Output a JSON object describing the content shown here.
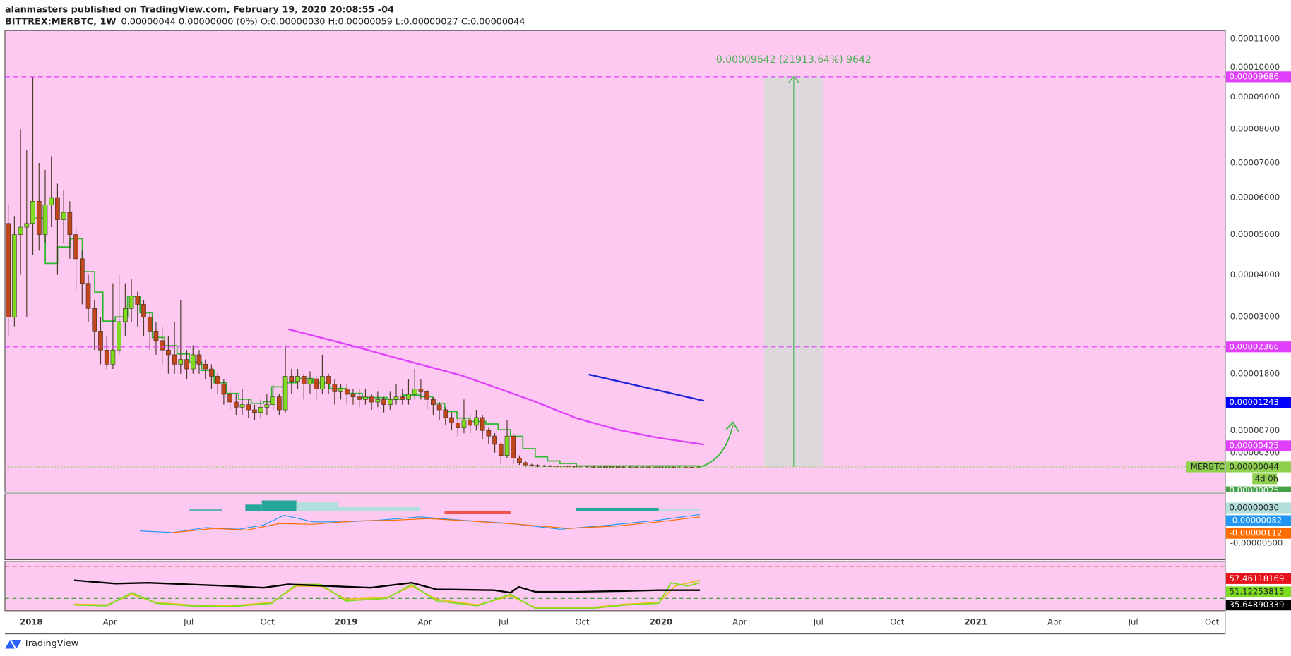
{
  "header": {
    "publisher": "alanmasters published on TradingView.com, February 19, 2020 20:08:55 -04",
    "symbol": "BITTREX:MERBTC, 1W",
    "quote": "0.00000044 0.00000000 (0%) O:0.00000030 H:0.00000059 L:0.00000027 C:0.00000044"
  },
  "chart_data": {
    "type": "candlestick",
    "up_color": "#7ddc22",
    "down_color": "#c0461c",
    "open": [
      5.3e-05,
      3e-05,
      5e-05,
      5.2e-05,
      5.3e-05,
      5.9e-05,
      5e-05,
      5.8e-05,
      6e-05,
      5.4e-05,
      5.6e-05,
      5e-05,
      4.4e-05,
      3.8e-05,
      3.2e-05,
      2.7e-05,
      2.3e-05,
      2e-05,
      2.3e-05,
      2.9e-05,
      3.2e-05,
      3.5e-05,
      3.3e-05,
      3e-05,
      2.7e-05,
      2.5e-05,
      2.3e-05,
      2.2e-05,
      2e-05,
      2.1e-05,
      1.9e-05,
      2.2e-05,
      2e-05,
      1.9e-05,
      1.75e-05,
      1.6e-05,
      1.4e-05,
      1.25e-05,
      1.15e-05,
      1.2e-05,
      1.1e-05,
      1.05e-05,
      1.15e-05,
      1.2e-05,
      1.35e-05,
      1.1e-05,
      1.75e-05,
      1.65e-05,
      1.75e-05,
      1.6e-05,
      1.7e-05,
      1.5e-05,
      1.75e-05,
      1.6e-05,
      1.45e-05,
      1.5e-05,
      1.4e-05,
      1.35e-05,
      1.3e-05,
      1.35e-05,
      1.25e-05,
      1.3e-05,
      1.2e-05,
      1.3e-05,
      1.35e-05,
      1.3e-05,
      1.4e-05,
      1.5e-05,
      1.45e-05,
      1.3e-05,
      1.2e-05,
      1.1e-05,
      9.5e-06,
      8.5e-06,
      7.5e-06,
      9e-06,
      8e-06,
      9.5e-06,
      7e-06,
      6e-06,
      4.5e-06,
      2.5e-06,
      6e-06,
      2e-06,
      1.2e-06,
      8e-07,
      7e-07,
      6e-07,
      6.5e-07,
      6e-07,
      5.5e-07,
      6e-07,
      5.5e-07,
      5e-07,
      5.5e-07,
      5e-07,
      4.8e-07,
      5e-07,
      4.5e-07,
      5e-07,
      4.8e-07,
      4.5e-07,
      4.7e-07,
      4.4e-07,
      4.6e-07,
      4.3e-07,
      4.5e-07,
      4.2e-07,
      4.4e-07,
      4.1e-07,
      4.3e-07,
      4e-07,
      3e-07
    ],
    "high": [
      5.8e-05,
      5.5e-05,
      8e-05,
      7.4e-05,
      9.69e-05,
      7e-05,
      6.8e-05,
      7.2e-05,
      6.4e-05,
      6.2e-05,
      5.9e-05,
      5.2e-05,
      4.6e-05,
      4e-05,
      3.4e-05,
      3e-05,
      2.6e-05,
      3.8e-05,
      4e-05,
      3.8e-05,
      3.9e-05,
      3.6e-05,
      3.4e-05,
      3.1e-05,
      2.9e-05,
      2.8e-05,
      2.6e-05,
      2.9e-05,
      3.4e-05,
      2.3e-05,
      2.4e-05,
      2.3e-05,
      2.1e-05,
      2e-05,
      1.8e-05,
      1.7e-05,
      1.5e-05,
      1.4e-05,
      1.5e-05,
      1.3e-05,
      1.2e-05,
      1.3e-05,
      1.4e-05,
      1.6e-05,
      1.4e-05,
      2.4e-05,
      1.9e-05,
      1.9e-05,
      1.8e-05,
      1.85e-05,
      1.75e-05,
      2.2e-05,
      1.8e-05,
      1.7e-05,
      1.6e-05,
      1.6e-05,
      1.5e-05,
      1.5e-05,
      1.5e-05,
      1.4e-05,
      1.45e-05,
      1.35e-05,
      1.45e-05,
      1.6e-05,
      1.5e-05,
      1.7e-05,
      1.9e-05,
      1.7e-05,
      1.5e-05,
      1.35e-05,
      1.25e-05,
      1.15e-05,
      1.05e-05,
      9.5e-06,
      1.3e-05,
      1e-05,
      1.1e-05,
      1e-05,
      7.5e-06,
      6.5e-06,
      5e-06,
      9e-06,
      6.5e-06,
      2.5e-06,
      1.5e-06,
      1e-06,
      9e-07,
      8e-07,
      7.5e-07,
      7e-07,
      7e-07,
      7e-07,
      6.5e-07,
      6.5e-07,
      6e-07,
      6e-07,
      6e-07,
      5.5e-07,
      6e-07,
      5.5e-07,
      5.5e-07,
      5.5e-07,
      5e-07,
      5.5e-07,
      5e-07,
      5e-07,
      5e-07,
      5e-07,
      5e-07,
      5e-07,
      5e-07,
      4.5e-07,
      5.9e-07
    ],
    "low": [
      2.6e-05,
      2.8e-05,
      4e-05,
      3e-05,
      4.5e-05,
      4.6e-05,
      4.8e-05,
      5.2e-05,
      4e-05,
      4.8e-05,
      4.4e-05,
      3.6e-05,
      3.3e-05,
      2.9e-05,
      2.3e-05,
      2e-05,
      1.9e-05,
      1.9e-05,
      2.2e-05,
      2.6e-05,
      2.9e-05,
      2.8e-05,
      2.6e-05,
      2.3e-05,
      2.2e-05,
      2e-05,
      1.8e-05,
      1.8e-05,
      1.8e-05,
      1.7e-05,
      1.8e-05,
      1.8e-05,
      1.7e-05,
      1.5e-05,
      1.4e-05,
      1.2e-05,
      1.1e-05,
      1e-05,
      1e-05,
      9.5e-06,
      9e-06,
      9.5e-06,
      1e-05,
      1.1e-05,
      1e-05,
      1.05e-05,
      1.4e-05,
      1.5e-05,
      1.3e-05,
      1.4e-05,
      1.3e-05,
      1.4e-05,
      1.4e-05,
      1.2e-05,
      1.3e-05,
      1.2e-05,
      1.2e-05,
      1.15e-05,
      1.2e-05,
      1.1e-05,
      1.15e-05,
      1.05e-05,
      1.1e-05,
      1.2e-05,
      1.2e-05,
      1.2e-05,
      1.3e-05,
      1.3e-05,
      1.1e-05,
      1e-05,
      9e-06,
      8e-06,
      7e-06,
      6e-06,
      6.5e-06,
      6.5e-06,
      7e-06,
      5.5e-06,
      4.5e-06,
      3e-06,
      1e-06,
      2e-06,
      1e-06,
      8e-07,
      5e-07,
      5e-07,
      4e-07,
      4.5e-07,
      4.5e-07,
      4e-07,
      4e-07,
      4e-07,
      4e-07,
      4e-07,
      4e-07,
      3.5e-07,
      4e-07,
      3.5e-07,
      4e-07,
      4e-07,
      3.5e-07,
      3.5e-07,
      3.5e-07,
      3.5e-07,
      3.5e-07,
      3.5e-07,
      3e-07,
      3.5e-07,
      3e-07,
      3.5e-07,
      3e-07,
      2.5e-07,
      2.7e-07
    ],
    "close": [
      3e-05,
      5e-05,
      5.2e-05,
      5.3e-05,
      5.9e-05,
      5e-05,
      5.8e-05,
      6e-05,
      5.4e-05,
      5.6e-05,
      5e-05,
      4.4e-05,
      3.8e-05,
      3.2e-05,
      2.7e-05,
      2.3e-05,
      2e-05,
      2.3e-05,
      2.9e-05,
      3.2e-05,
      3.5e-05,
      3.3e-05,
      3e-05,
      2.7e-05,
      2.5e-05,
      2.3e-05,
      2.2e-05,
      2e-05,
      2.1e-05,
      1.9e-05,
      2.2e-05,
      2e-05,
      1.9e-05,
      1.75e-05,
      1.6e-05,
      1.4e-05,
      1.25e-05,
      1.15e-05,
      1.2e-05,
      1.1e-05,
      1.05e-05,
      1.15e-05,
      1.2e-05,
      1.35e-05,
      1.1e-05,
      1.75e-05,
      1.65e-05,
      1.75e-05,
      1.6e-05,
      1.7e-05,
      1.5e-05,
      1.75e-05,
      1.6e-05,
      1.45e-05,
      1.5e-05,
      1.4e-05,
      1.35e-05,
      1.3e-05,
      1.35e-05,
      1.25e-05,
      1.3e-05,
      1.2e-05,
      1.3e-05,
      1.35e-05,
      1.3e-05,
      1.4e-05,
      1.5e-05,
      1.45e-05,
      1.3e-05,
      1.2e-05,
      1.1e-05,
      9.5e-06,
      8.5e-06,
      7.5e-06,
      9e-06,
      8e-06,
      9.5e-06,
      7e-06,
      6e-06,
      4.5e-06,
      2.5e-06,
      6e-06,
      2e-06,
      1.2e-06,
      8e-07,
      7e-07,
      6e-07,
      6.5e-07,
      6e-07,
      5.5e-07,
      6e-07,
      5.5e-07,
      5e-07,
      5.5e-07,
      5e-07,
      4.8e-07,
      5e-07,
      4.5e-07,
      5e-07,
      4.8e-07,
      4.5e-07,
      4.7e-07,
      4.4e-07,
      4.6e-07,
      4.3e-07,
      4.5e-07,
      4.2e-07,
      4.4e-07,
      4.1e-07,
      4.3e-07,
      4e-07,
      3e-07,
      4.4e-07
    ],
    "yticks": [
      {
        "value": 0.00011,
        "label": "0.00011000"
      },
      {
        "value": 0.0001,
        "label": "0.00010000"
      },
      {
        "value": 9e-05,
        "label": "0.00009000"
      },
      {
        "value": 8e-05,
        "label": "0.00008000"
      },
      {
        "value": 7e-05,
        "label": "0.00007000"
      },
      {
        "value": 6e-05,
        "label": "0.00006000"
      },
      {
        "value": 5e-05,
        "label": "0.00005000"
      },
      {
        "value": 4e-05,
        "label": "0.00004000"
      },
      {
        "value": 3e-05,
        "label": "0.00003000"
      },
      {
        "value": 1.8e-05,
        "label": "0.00001800"
      },
      {
        "value": 7e-06,
        "label": "0.00000700"
      },
      {
        "value": 3e-06,
        "label": "0.00000300"
      }
    ],
    "price_lines": [
      {
        "value": 9.686e-05,
        "label": "0.00009686",
        "color": "#e040fb"
      },
      {
        "value": 2.366e-05,
        "label": "0.00002366",
        "color": "#e040fb"
      }
    ],
    "price_badges": [
      {
        "value": 1.243e-05,
        "label": "0.00001243",
        "color": "#0000ff"
      },
      {
        "value": 4.25e-06,
        "label": "0.00000425",
        "color": "#e040fb"
      }
    ],
    "symbol_label": "MERBTC",
    "last_price": "0.00000044",
    "countdown": "4d 0h",
    "low_label": "0.00000025",
    "measure": "0.00009642 (21913.64%) 9642",
    "time_labels": [
      "2018",
      "Apr",
      "Jul",
      "Oct",
      "2019",
      "Apr",
      "Jul",
      "Oct",
      "2020",
      "Apr",
      "Jul",
      "Oct",
      "2021",
      "Apr",
      "Jul",
      "Oct"
    ],
    "macd_tick": "-0.00000500",
    "macd_labels": [
      {
        "label": "0.00000030",
        "color": "#b2dfdb"
      },
      {
        "label": "-0.00000082",
        "color": "#2196f3"
      },
      {
        "label": "-0.00000112",
        "color": "#ff6d00"
      }
    ],
    "rsi_values": [
      57.46118169,
      51.12253815,
      35.64890339
    ],
    "rsi_colors": [
      "#e8121c",
      "#7ddc22",
      "#000000"
    ]
  },
  "footer": {
    "brand": "TradingView"
  }
}
